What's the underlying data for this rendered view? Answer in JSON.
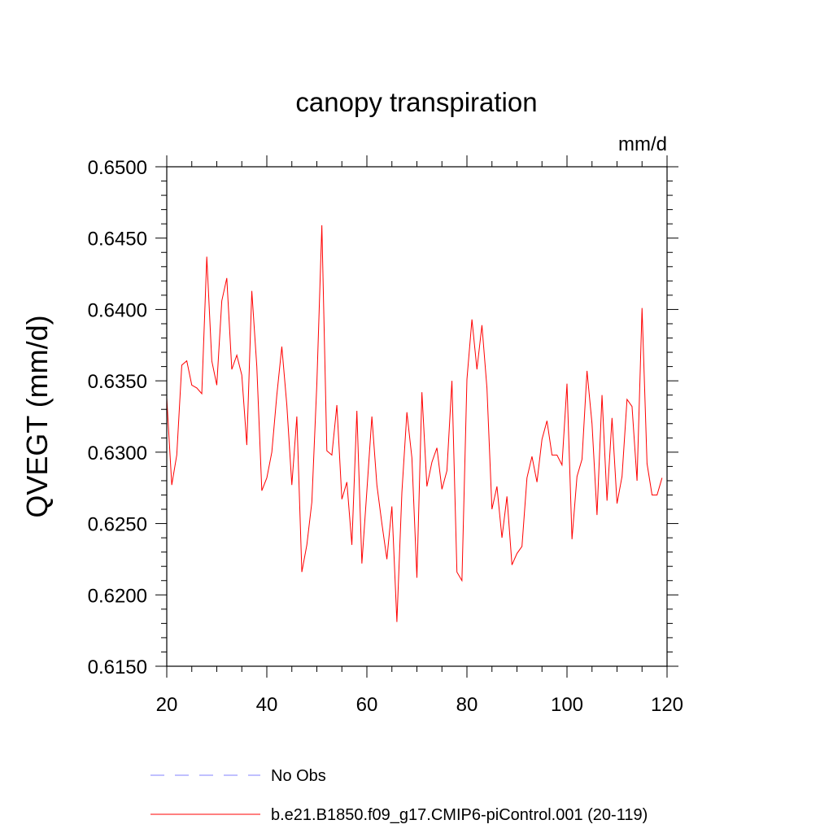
{
  "chart_data": {
    "type": "line",
    "title": "canopy transpiration",
    "units_label": "mm/d",
    "ylabel": "QVEGT  (mm/d)",
    "xlabel": "",
    "xlim": [
      20,
      120
    ],
    "ylim": [
      0.615,
      0.65
    ],
    "x_ticks": [
      20,
      40,
      60,
      80,
      100,
      120
    ],
    "x_tick_labels": [
      "20",
      "40",
      "60",
      "80",
      "100",
      "120"
    ],
    "y_ticks": [
      0.615,
      0.62,
      0.625,
      0.63,
      0.635,
      0.64,
      0.645,
      0.65
    ],
    "y_tick_labels": [
      "0.6150",
      "0.6200",
      "0.6250",
      "0.6300",
      "0.6350",
      "0.6400",
      "0.6450",
      "0.6500"
    ],
    "grid": false,
    "legend_position": "bottom",
    "legend": [
      {
        "label": "No Obs",
        "color": "#8080ff",
        "style": "dashed"
      },
      {
        "label": "b.e21.B1850.f09_g17.CMIP6-piControl.001 (20-119)",
        "color": "#ff0000",
        "style": "solid"
      }
    ],
    "series": [
      {
        "name": "b.e21.B1850.f09_g17.CMIP6-piControl.001 (20-119)",
        "color": "#ff0000",
        "x": [
          20,
          21,
          22,
          23,
          24,
          25,
          26,
          27,
          28,
          29,
          30,
          31,
          32,
          33,
          34,
          35,
          36,
          37,
          38,
          39,
          40,
          41,
          42,
          43,
          44,
          45,
          46,
          47,
          48,
          49,
          50,
          51,
          52,
          53,
          54,
          55,
          56,
          57,
          58,
          59,
          60,
          61,
          62,
          63,
          64,
          65,
          66,
          67,
          68,
          69,
          70,
          71,
          72,
          73,
          74,
          75,
          76,
          77,
          78,
          79,
          80,
          81,
          82,
          83,
          84,
          85,
          86,
          87,
          88,
          89,
          90,
          91,
          92,
          93,
          94,
          95,
          96,
          97,
          98,
          99,
          100,
          101,
          102,
          103,
          104,
          105,
          106,
          107,
          108,
          109,
          110,
          111,
          112,
          113,
          114,
          115,
          116,
          117,
          118,
          119
        ],
        "values": [
          0.6338,
          0.6277,
          0.6298,
          0.6361,
          0.6364,
          0.6347,
          0.6345,
          0.6341,
          0.6437,
          0.6364,
          0.6347,
          0.6406,
          0.6422,
          0.6358,
          0.6368,
          0.6354,
          0.6305,
          0.6413,
          0.636,
          0.6273,
          0.6282,
          0.63,
          0.634,
          0.6374,
          0.6333,
          0.6277,
          0.6325,
          0.6216,
          0.6235,
          0.6265,
          0.6348,
          0.6459,
          0.6301,
          0.6298,
          0.6333,
          0.6267,
          0.6279,
          0.6235,
          0.6329,
          0.6222,
          0.6273,
          0.6325,
          0.6277,
          0.625,
          0.6225,
          0.6262,
          0.6181,
          0.6272,
          0.6328,
          0.6296,
          0.6212,
          0.6342,
          0.6276,
          0.6293,
          0.6303,
          0.6274,
          0.6287,
          0.635,
          0.6216,
          0.621,
          0.6351,
          0.6393,
          0.6358,
          0.6389,
          0.6345,
          0.626,
          0.6276,
          0.624,
          0.6269,
          0.6221,
          0.6229,
          0.6234,
          0.6282,
          0.6297,
          0.6279,
          0.6309,
          0.6322,
          0.6298,
          0.6298,
          0.6291,
          0.6348,
          0.6239,
          0.6283,
          0.6295,
          0.6357,
          0.632,
          0.6256,
          0.634,
          0.6266,
          0.6324,
          0.6264,
          0.6283,
          0.6337,
          0.6332,
          0.628,
          0.6401,
          0.6292,
          0.627,
          0.627,
          0.6282
        ]
      }
    ]
  }
}
